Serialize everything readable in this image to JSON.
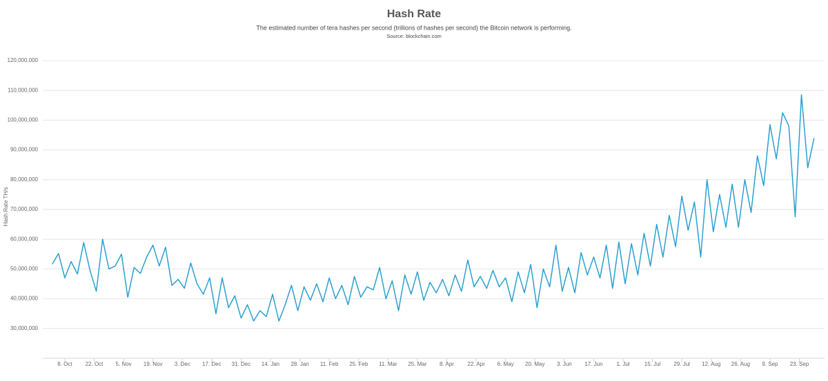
{
  "chart_data": {
    "type": "line",
    "title": "Hash Rate",
    "subtitle": "The estimated number of tera hashes per second (trillions of hashes per second) the Bitcoin network is performing.",
    "source": "Source: blockchain.com",
    "y_label": "Hash Rate TH/s",
    "grid": true,
    "x": [
      0,
      3,
      6,
      9,
      12,
      15,
      18,
      21,
      24,
      27,
      30,
      33,
      36,
      39,
      42,
      45,
      48,
      51,
      54,
      57,
      60,
      63,
      66,
      69,
      72,
      75,
      78,
      81,
      84,
      87,
      90,
      93,
      96,
      99,
      102,
      105,
      108,
      111,
      114,
      117,
      120,
      123,
      126,
      129,
      132,
      135,
      138,
      141,
      144,
      147,
      150,
      153,
      156,
      159,
      162,
      165,
      168,
      171,
      174,
      177,
      180,
      183,
      186,
      189,
      192,
      195,
      198,
      201,
      204,
      207,
      210,
      213,
      216,
      219,
      222,
      225,
      228,
      231,
      234,
      237,
      240,
      243,
      246,
      249,
      252,
      255,
      258,
      261,
      264,
      267,
      270,
      273,
      276,
      279,
      282,
      285,
      288,
      291,
      294,
      297,
      300,
      303,
      306,
      309,
      312,
      315,
      318,
      321,
      324,
      327,
      330,
      333,
      336,
      339,
      342,
      345,
      348,
      351,
      354,
      357,
      360,
      363
    ],
    "series": [
      {
        "name": "Hash Rate",
        "color": "#2a9fd0",
        "values": [
          51600000,
          55200000,
          47000000,
          52500000,
          48300000,
          58900000,
          49500000,
          42500000,
          60000000,
          50000000,
          51000000,
          55000000,
          40500000,
          50500000,
          48500000,
          54000000,
          58000000,
          51000000,
          57300000,
          44500000,
          46500000,
          43500000,
          52000000,
          45000000,
          41500000,
          47000000,
          35000000,
          47000000,
          37000000,
          41000000,
          33500000,
          38000000,
          32500000,
          36000000,
          34000000,
          41500000,
          32500000,
          38000000,
          44500000,
          36000000,
          44000000,
          39500000,
          45000000,
          39000000,
          47000000,
          40000000,
          44500000,
          38000000,
          47500000,
          40500000,
          44000000,
          43000000,
          50500000,
          40000000,
          46000000,
          36000000,
          48000000,
          41500000,
          49000000,
          39500000,
          45500000,
          42000000,
          46500000,
          41000000,
          48000000,
          42500000,
          53000000,
          44000000,
          47500000,
          43500000,
          49500000,
          44000000,
          47000000,
          39000000,
          49000000,
          42000000,
          51500000,
          37000000,
          50000000,
          44000000,
          58000000,
          42500000,
          50500000,
          42000000,
          55500000,
          48000000,
          54000000,
          47000000,
          58000000,
          43500000,
          59000000,
          45000000,
          58500000,
          48000000,
          62000000,
          51000000,
          65000000,
          54000000,
          68000000,
          57500000,
          74500000,
          63000000,
          72500000,
          54000000,
          80000000,
          62500000,
          75000000,
          64000000,
          78500000,
          64000000,
          80000000,
          69000000,
          88000000,
          78000000,
          98500000,
          87000000,
          102500000,
          98000000,
          67500000,
          108500000,
          84000000,
          94000000
        ]
      }
    ],
    "xlim": [
      -4.5,
      368
    ],
    "xticks": [
      {
        "value": 6,
        "label": "8. Oct"
      },
      {
        "value": 20,
        "label": "22. Oct"
      },
      {
        "value": 34,
        "label": "5. Nov"
      },
      {
        "value": 48,
        "label": "19. Nov"
      },
      {
        "value": 62,
        "label": "3. Dec"
      },
      {
        "value": 76,
        "label": "17. Dec"
      },
      {
        "value": 90,
        "label": "31. Dec"
      },
      {
        "value": 104,
        "label": "14. Jan"
      },
      {
        "value": 118,
        "label": "28. Jan"
      },
      {
        "value": 132,
        "label": "11. Feb"
      },
      {
        "value": 146,
        "label": "25. Feb"
      },
      {
        "value": 160,
        "label": "11. Mar"
      },
      {
        "value": 174,
        "label": "25. Mar"
      },
      {
        "value": 188,
        "label": "8. Apr"
      },
      {
        "value": 202,
        "label": "22. Apr"
      },
      {
        "value": 216,
        "label": "6. May"
      },
      {
        "value": 230,
        "label": "20. May"
      },
      {
        "value": 244,
        "label": "3. Jun"
      },
      {
        "value": 258,
        "label": "17. Jun"
      },
      {
        "value": 272,
        "label": "1. Jul"
      },
      {
        "value": 286,
        "label": "15. Jul"
      },
      {
        "value": 300,
        "label": "29. Jul"
      },
      {
        "value": 314,
        "label": "12. Aug"
      },
      {
        "value": 328,
        "label": "26. Aug"
      },
      {
        "value": 342,
        "label": "9. Sep"
      },
      {
        "value": 356,
        "label": "23. Sep"
      }
    ],
    "ylim": [
      20000000,
      120000000
    ],
    "yticks": [
      {
        "value": 30000000,
        "label": "30,000,000"
      },
      {
        "value": 40000000,
        "label": "40,000,000"
      },
      {
        "value": 50000000,
        "label": "50,000,000"
      },
      {
        "value": 60000000,
        "label": "60,000,000"
      },
      {
        "value": 70000000,
        "label": "70,000,000"
      },
      {
        "value": 80000000,
        "label": "80,000,000"
      },
      {
        "value": 90000000,
        "label": "90,000,000"
      },
      {
        "value": 100000000,
        "label": "100,000,000"
      },
      {
        "value": 110000000,
        "label": "110,000,000"
      },
      {
        "value": 120000000,
        "label": "120,000,000"
      }
    ]
  }
}
